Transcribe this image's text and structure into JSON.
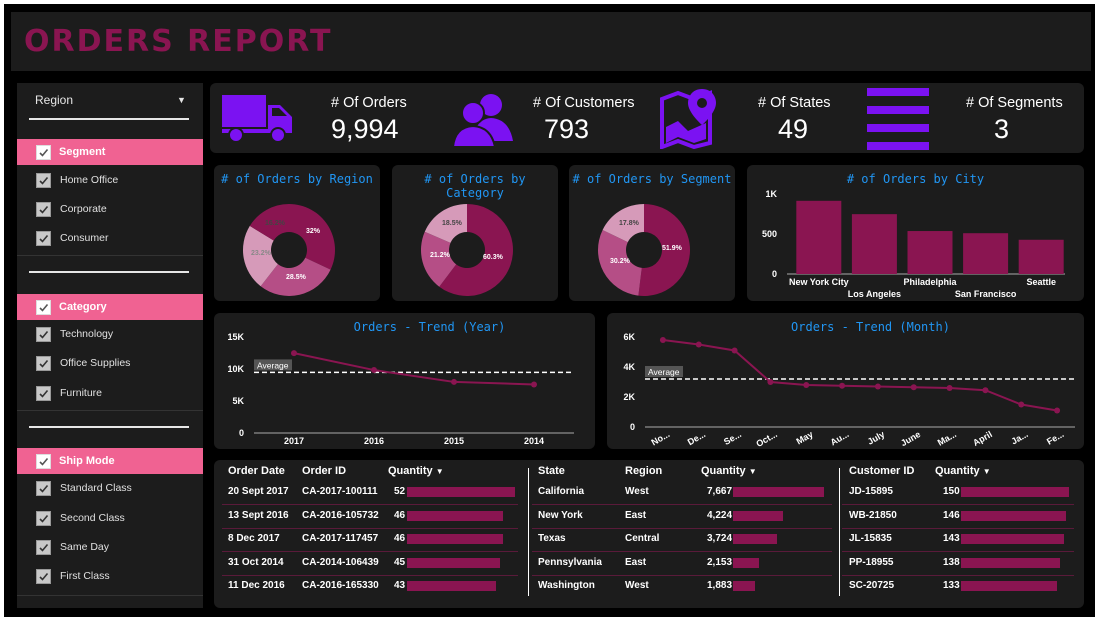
{
  "title": "ORDERS REPORT",
  "colors": {
    "accent": "#8a1551",
    "kpi_icon": "#7b12f2",
    "filter_head": "#f06292",
    "title_blue": "#2196f3",
    "donut": [
      "#8a1551",
      "#b54e86",
      "#d69ab9"
    ]
  },
  "filters": {
    "region": {
      "label": "Region",
      "icon": "caret-down"
    },
    "segment": {
      "label": "Segment",
      "options": [
        "Home Office",
        "Corporate",
        "Consumer"
      ]
    },
    "category": {
      "label": "Category",
      "options": [
        "Technology",
        "Office Supplies",
        "Furniture"
      ]
    },
    "ship_mode": {
      "label": "Ship Mode",
      "options": [
        "Standard Class",
        "Second Class",
        "Same Day",
        "First Class"
      ]
    }
  },
  "kpis": [
    {
      "label": "# Of Orders",
      "value": "9,994",
      "icon": "truck-icon"
    },
    {
      "label": "# Of Customers",
      "value": "793",
      "icon": "users-icon"
    },
    {
      "label": "# Of States",
      "value": "49",
      "icon": "map-pin-icon"
    },
    {
      "label": "# Of Segments",
      "value": "3",
      "icon": "list-icon"
    }
  ],
  "donuts": [
    {
      "title": "# of Orders by Region",
      "labels": [
        "32%",
        "28.5%",
        "23.2%",
        "16.2%"
      ]
    },
    {
      "title": "# of Orders by Category",
      "labels": [
        "60.3%",
        "21.2%",
        "18.5%"
      ]
    },
    {
      "title": "# of Orders by Segment",
      "labels": [
        "51.9%",
        "30.2%",
        "17.8%"
      ]
    }
  ],
  "city_chart": {
    "title": "# of Orders by City",
    "yticks": [
      "1K",
      "500",
      "0"
    ],
    "cities": [
      "New York City",
      "Los Angeles",
      "Philadelphia",
      "San Francisco",
      "Seattle"
    ]
  },
  "trend_year": {
    "title": "Orders - Trend (Year)",
    "yticks": [
      "15K",
      "10K",
      "5K",
      "0"
    ],
    "x": [
      "2017",
      "2016",
      "2015",
      "2014"
    ],
    "average_label": "Average"
  },
  "trend_month": {
    "title": "Orders - Trend (Month)",
    "yticks": [
      "6K",
      "4K",
      "2K",
      "0"
    ],
    "x": [
      "No...",
      "De...",
      "Se...",
      "Oct...",
      "May",
      "Au...",
      "July",
      "June",
      "Ma...",
      "April",
      "Ja...",
      "Fe..."
    ],
    "average_label": "Average"
  },
  "table1": {
    "headers": [
      "Order Date",
      "Order ID",
      "Quantity"
    ],
    "sort_icon": "sort-down",
    "rows": [
      {
        "date": "20 Sept 2017",
        "id": "CA-2017-100111",
        "qty": "52"
      },
      {
        "date": "13 Sept 2016",
        "id": "CA-2016-105732",
        "qty": "46"
      },
      {
        "date": "8 Dec 2017",
        "id": "CA-2017-117457",
        "qty": "46"
      },
      {
        "date": "31 Oct 2014",
        "id": "CA-2014-106439",
        "qty": "45"
      },
      {
        "date": "11 Dec 2016",
        "id": "CA-2016-165330",
        "qty": "43"
      }
    ]
  },
  "table2": {
    "headers": [
      "State",
      "Region",
      "Quantity"
    ],
    "rows": [
      {
        "state": "California",
        "region": "West",
        "qty": "7,667"
      },
      {
        "state": "New York",
        "region": "East",
        "qty": "4,224"
      },
      {
        "state": "Texas",
        "region": "Central",
        "qty": "3,724"
      },
      {
        "state": "Pennsylvania",
        "region": "East",
        "qty": "2,153"
      },
      {
        "state": "Washington",
        "region": "West",
        "qty": "1,883"
      }
    ]
  },
  "table3": {
    "headers": [
      "Customer ID",
      "Quantity"
    ],
    "rows": [
      {
        "id": "JD-15895",
        "qty": "150"
      },
      {
        "id": "WB-21850",
        "qty": "146"
      },
      {
        "id": "JL-15835",
        "qty": "143"
      },
      {
        "id": "PP-18955",
        "qty": "138"
      },
      {
        "id": "SC-20725",
        "qty": "133"
      }
    ]
  },
  "chart_data": [
    {
      "type": "pie",
      "title": "# of Orders by Region",
      "values": [
        32,
        28.5,
        23.2,
        16.2
      ]
    },
    {
      "type": "pie",
      "title": "# of Orders by Category",
      "values": [
        60.3,
        21.2,
        18.5
      ]
    },
    {
      "type": "pie",
      "title": "# of Orders by Segment",
      "values": [
        51.9,
        30.2,
        17.8
      ]
    },
    {
      "type": "bar",
      "title": "# of Orders by City",
      "categories": [
        "New York City",
        "Los Angeles",
        "Philadelphia",
        "San Francisco",
        "Seattle"
      ],
      "values": [
        915,
        748,
        537,
        510,
        428
      ],
      "ylim": [
        0,
        1100
      ]
    },
    {
      "type": "line",
      "title": "Orders - Trend (Year)",
      "x": [
        "2017",
        "2016",
        "2015",
        "2014"
      ],
      "values": [
        12476,
        9837,
        7979,
        7581
      ],
      "average": 9468,
      "ylim": [
        0,
        15000
      ]
    },
    {
      "type": "line",
      "title": "Orders - Trend (Month)",
      "x": [
        "No...",
        "De...",
        "Se...",
        "Oct...",
        "May",
        "Au...",
        "July",
        "June",
        "Ma...",
        "April",
        "Ja...",
        "Fe..."
      ],
      "values": [
        5800,
        5500,
        5100,
        3000,
        2800,
        2750,
        2700,
        2650,
        2600,
        2450,
        1500,
        1100
      ],
      "average": 3200,
      "ylim": [
        0,
        6000
      ]
    }
  ]
}
